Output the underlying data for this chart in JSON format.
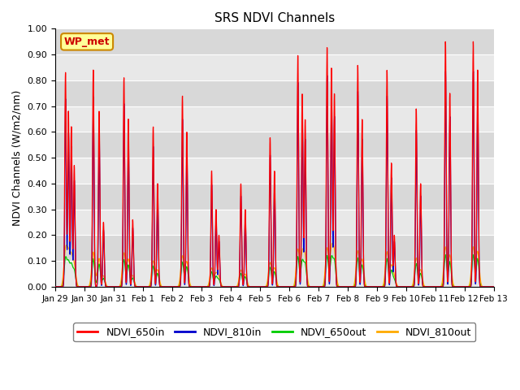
{
  "title": "SRS NDVI Channels",
  "ylabel": "NDVI Channels (W/m2/nm)",
  "ylim": [
    0.0,
    1.0
  ],
  "yticks": [
    0.0,
    0.1,
    0.2,
    0.3,
    0.4,
    0.5,
    0.6,
    0.7,
    0.8,
    0.9,
    1.0
  ],
  "xtick_labels": [
    "Jan 29",
    "Jan 30",
    "Jan 31",
    "Feb 1",
    "Feb 2",
    "Feb 3",
    "Feb 4",
    "Feb 5",
    "Feb 6",
    "Feb 7",
    "Feb 8",
    "Feb 9",
    "Feb 10",
    "Feb 11",
    "Feb 12",
    "Feb 13"
  ],
  "annotation_text": "WP_met",
  "annotation_color": "#cc0000",
  "annotation_bg": "#ffff99",
  "annotation_border": "#cc8800",
  "colors": {
    "NDVI_650in": "#ff0000",
    "NDVI_810in": "#0000cc",
    "NDVI_650out": "#00cc00",
    "NDVI_810out": "#ffaa00"
  },
  "legend_labels": [
    "NDVI_650in",
    "NDVI_810in",
    "NDVI_650out",
    "NDVI_810out"
  ],
  "plot_bg": "#e8e8e8",
  "band_colors": [
    "#e8e8e8",
    "#d8d8d8"
  ],
  "grid_color": "#ffffff"
}
